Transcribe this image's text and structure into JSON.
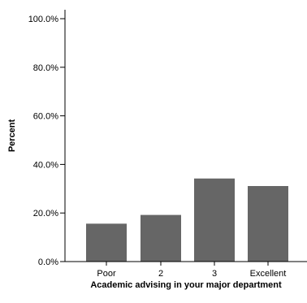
{
  "chart_data": {
    "type": "bar",
    "title": "",
    "xlabel": "Academic advising in your major department",
    "ylabel": "Percent",
    "categories": [
      "Poor",
      "2",
      "3",
      "Excellent"
    ],
    "values": [
      15.6,
      19.2,
      34.2,
      31.1
    ],
    "ylim": [
      0,
      100
    ],
    "yticks": [
      "0.0%",
      "20.0%",
      "40.0%",
      "60.0%",
      "80.0%",
      "100.0%"
    ],
    "ytick_values": [
      0,
      20,
      40,
      60,
      80,
      100
    ],
    "grid": false,
    "legend": "none",
    "bar_color": "#666666"
  }
}
